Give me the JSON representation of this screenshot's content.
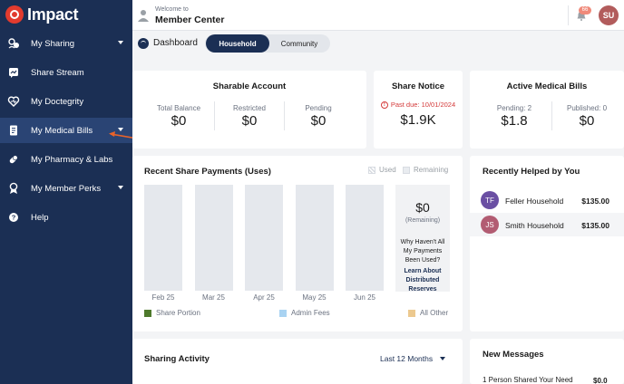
{
  "brand": {
    "name": "Impact"
  },
  "sidebar": {
    "items": [
      {
        "label": "My Sharing",
        "icon": "sharing-icon",
        "chevron": true
      },
      {
        "label": "Share Stream",
        "icon": "stream-icon",
        "chevron": false
      },
      {
        "label": "My Doctegrity",
        "icon": "heart-icon",
        "chevron": false
      },
      {
        "label": "My Medical Bills",
        "icon": "bills-icon",
        "chevron": true,
        "active": true
      },
      {
        "label": "My Pharmacy & Labs",
        "icon": "pill-icon",
        "chevron": false
      },
      {
        "label": "My Member Perks",
        "icon": "perks-icon",
        "chevron": true
      },
      {
        "label": "Help",
        "icon": "help-icon",
        "chevron": false
      }
    ]
  },
  "header": {
    "welcome": "Welcome to",
    "title": "Member Center",
    "notification_count": "66",
    "user_initials": "SU"
  },
  "subnav": {
    "dashboard_label": "Dashboard",
    "tabs": [
      {
        "label": "Household",
        "active": true
      },
      {
        "label": "Community",
        "active": false
      }
    ]
  },
  "sharable_account": {
    "title": "Sharable Account",
    "stats": [
      {
        "label": "Total Balance",
        "value": "$0"
      },
      {
        "label": "Restricted",
        "value": "$0"
      },
      {
        "label": "Pending",
        "value": "$0"
      }
    ]
  },
  "share_notice": {
    "title": "Share Notice",
    "past_due": "Past due: 10/01/2024",
    "amount": "$1.9K"
  },
  "active_medical_bills": {
    "title": "Active Medical Bills",
    "stats": [
      {
        "label": "Pending: 2",
        "value": "$1.8"
      },
      {
        "label": "Published: 0",
        "value": "$0"
      }
    ]
  },
  "share_payments": {
    "title": "Recent Share Payments (Uses)",
    "legend_used": "Used",
    "legend_remaining": "Remaining",
    "remaining_amount": "$0",
    "remaining_label": "(Remaining)",
    "question": "Why Haven't All My Payments Been Used?",
    "link": "Learn About Distributed Reserves",
    "legend": [
      {
        "label": "Share Portion",
        "color": "#4e7a2c"
      },
      {
        "label": "Admin Fees",
        "color": "#a9d3f2"
      },
      {
        "label": "All Other",
        "color": "#ecc98f"
      }
    ]
  },
  "chart_data": {
    "type": "bar",
    "categories": [
      "Feb 25",
      "Mar 25",
      "Apr 25",
      "May 25",
      "Jun 25"
    ],
    "series": [
      {
        "name": "Share Portion",
        "values": [
          0,
          0,
          0,
          0,
          0
        ]
      },
      {
        "name": "Admin Fees",
        "values": [
          0,
          0,
          0,
          0,
          0
        ]
      },
      {
        "name": "All Other",
        "values": [
          0,
          0,
          0,
          0,
          0
        ]
      }
    ],
    "title": "Recent Share Payments (Uses)",
    "legend": "bottom"
  },
  "recently_helped": {
    "title": "Recently Helped by You",
    "items": [
      {
        "initials": "TF",
        "name": "Feller Household",
        "amount": "$135.00",
        "color": "#6a4fa3"
      },
      {
        "initials": "JS",
        "name": "Smith Household",
        "amount": "$135.00",
        "color": "#b25c72"
      }
    ]
  },
  "sharing_activity": {
    "title": "Sharing Activity",
    "period": "Last 12 Months"
  },
  "new_messages": {
    "title": "New Messages",
    "line_text": "1 Person Shared Your Need",
    "line_amount": "$0.0"
  }
}
